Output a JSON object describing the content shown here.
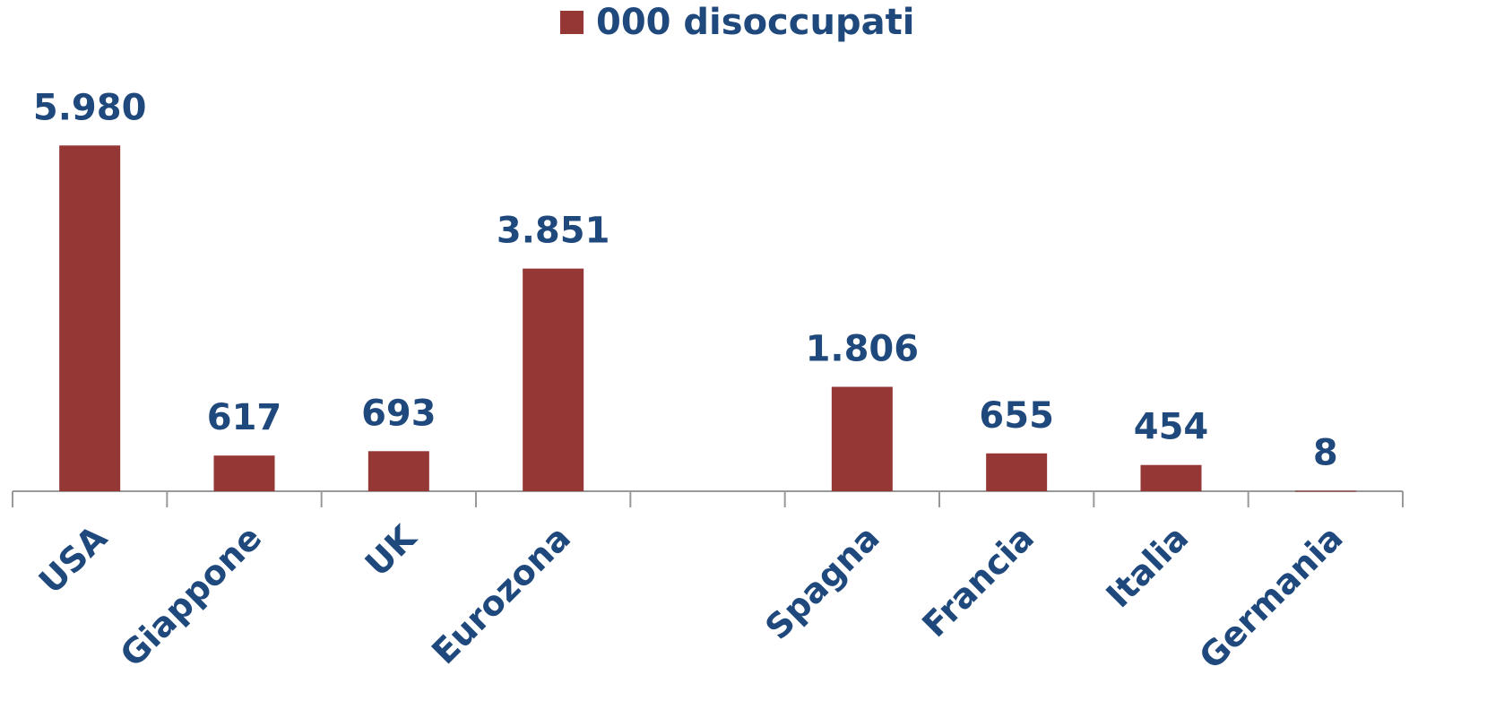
{
  "chart_data": {
    "type": "bar",
    "categories": [
      "USA",
      "Giappone",
      "UK",
      "Eurozona",
      null,
      "Spagna",
      "Francia",
      "Italia",
      "Germania"
    ],
    "series": [
      {
        "name": "000 disoccupati",
        "color": "#953735",
        "values": [
          5980,
          617,
          693,
          3851,
          null,
          1806,
          655,
          454,
          8
        ],
        "value_labels": [
          "5.980",
          "617",
          "693",
          "3.851",
          null,
          "1.806",
          "655",
          "454",
          "8"
        ]
      }
    ],
    "ylim": [
      0,
      6000
    ],
    "legend": "top"
  }
}
